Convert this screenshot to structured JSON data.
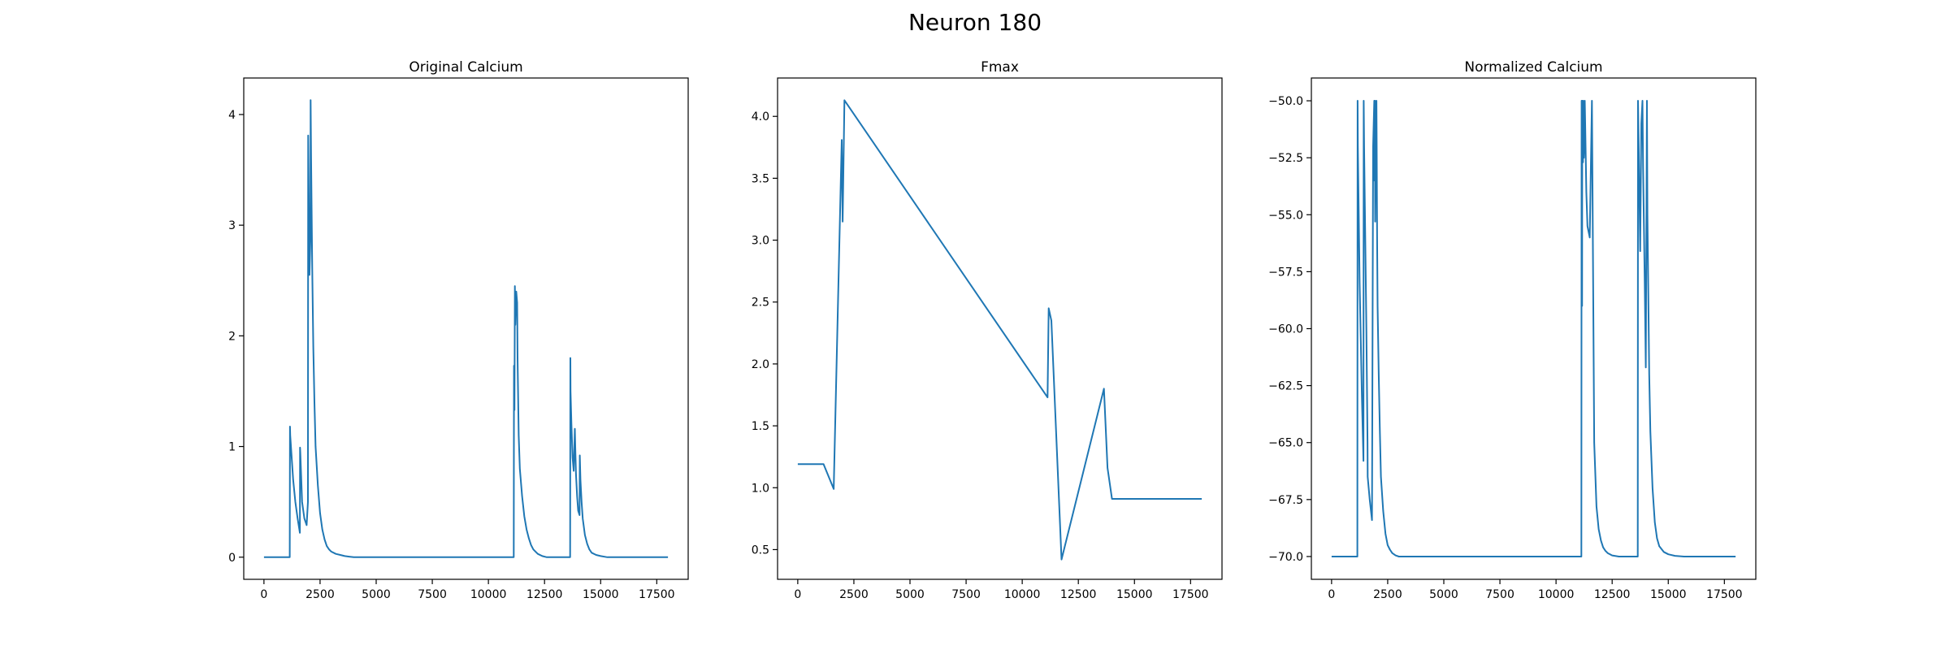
{
  "figure": {
    "title": "Neuron 180"
  },
  "chart_data": [
    {
      "type": "line",
      "title": "Original Calcium",
      "xlabel": "",
      "ylabel": "",
      "xlim": [
        -900,
        18900
      ],
      "ylim": [
        -0.2,
        4.33
      ],
      "xticks": [
        0,
        2500,
        5000,
        7500,
        10000,
        12500,
        15000,
        17500
      ],
      "yticks": [
        0,
        1,
        2,
        3,
        4
      ],
      "grid": false,
      "color": "#1f77b4",
      "series": [
        {
          "x": [
            0,
            1150,
            1160,
            1170,
            1300,
            1400,
            1500,
            1600,
            1610,
            1620,
            1700,
            1800,
            1900,
            1960,
            1970,
            2030,
            2070,
            2080,
            2100,
            2150,
            2200,
            2250,
            2300,
            2400,
            2500,
            2600,
            2700,
            2800,
            2900,
            3000,
            3200,
            3400,
            3600,
            3800,
            4000,
            4500,
            11130,
            11140,
            11160,
            11180,
            11200,
            11240,
            11280,
            11300,
            11320,
            11350,
            11400,
            11500,
            11600,
            11700,
            11800,
            11900,
            12000,
            12100,
            12200,
            12400,
            12600,
            13640,
            13650,
            13660,
            13700,
            13750,
            13800,
            13850,
            13870,
            13900,
            13950,
            14000,
            14060,
            14070,
            14100,
            14150,
            14200,
            14300,
            14400,
            14500,
            14600,
            14800,
            15000,
            15300,
            18000
          ],
          "y": [
            0,
            0,
            1.18,
            1.1,
            0.7,
            0.5,
            0.35,
            0.22,
            0.99,
            0.95,
            0.5,
            0.35,
            0.29,
            0.5,
            3.81,
            2.55,
            2.9,
            4.13,
            3.6,
            2.6,
            1.9,
            1.4,
            1.0,
            0.65,
            0.4,
            0.25,
            0.16,
            0.1,
            0.07,
            0.05,
            0.03,
            0.02,
            0.01,
            0.005,
            0,
            0,
            0,
            1.73,
            1.33,
            2.45,
            2.1,
            2.4,
            2.3,
            1.8,
            1.5,
            1.1,
            0.8,
            0.55,
            0.37,
            0.25,
            0.17,
            0.11,
            0.07,
            0.05,
            0.03,
            0.01,
            0,
            0,
            1.8,
            1.5,
            1.2,
            0.9,
            0.78,
            1.16,
            1.0,
            0.75,
            0.55,
            0.42,
            0.38,
            0.92,
            0.7,
            0.5,
            0.35,
            0.2,
            0.12,
            0.07,
            0.04,
            0.02,
            0.01,
            0,
            0
          ]
        }
      ]
    },
    {
      "type": "line",
      "title": "Fmax",
      "xlabel": "",
      "ylabel": "",
      "xlim": [
        -900,
        18900
      ],
      "ylim": [
        0.26,
        4.31
      ],
      "xticks": [
        0,
        2500,
        5000,
        7500,
        10000,
        12500,
        15000,
        17500
      ],
      "yticks": [
        0.5,
        1.0,
        1.5,
        2.0,
        2.5,
        3.0,
        3.5,
        4.0
      ],
      "grid": false,
      "color": "#1f77b4",
      "series": [
        {
          "x": [
            0,
            1150,
            1600,
            1960,
            2000,
            2030,
            2080,
            11130,
            11180,
            11300,
            11750,
            13640,
            13800,
            14000,
            18000
          ],
          "y": [
            1.19,
            1.19,
            0.99,
            3.81,
            3.15,
            3.5,
            4.13,
            1.73,
            2.45,
            2.35,
            0.42,
            1.8,
            1.16,
            0.91,
            0.91
          ]
        }
      ]
    },
    {
      "type": "line",
      "title": "Normalized Calcium",
      "xlabel": "",
      "ylabel": "",
      "xlim": [
        -900,
        18900
      ],
      "ylim": [
        -71.0,
        -49.0
      ],
      "xticks": [
        0,
        2500,
        5000,
        7500,
        10000,
        12500,
        15000,
        17500
      ],
      "yticks": [
        -50.0,
        -52.5,
        -55.0,
        -57.5,
        -60.0,
        -62.5,
        -65.0,
        -67.5,
        -70.0
      ],
      "yticklabels": [
        "−50.0",
        "−52.5",
        "−55.0",
        "−57.5",
        "−60.0",
        "−62.5",
        "−65.0",
        "−67.5",
        "−70.0"
      ],
      "grid": false,
      "color": "#1f77b4",
      "series": [
        {
          "x": [
            0,
            1150,
            1160,
            1170,
            1250,
            1350,
            1420,
            1430,
            1450,
            1550,
            1600,
            1610,
            1700,
            1800,
            1850,
            1900,
            1910,
            1930,
            1940,
            1960,
            2000,
            2010,
            2030,
            2050,
            2100,
            2150,
            2200,
            2300,
            2400,
            2500,
            2600,
            2700,
            2850,
            3000,
            3200,
            3500,
            4000,
            4500,
            11130,
            11140,
            11160,
            11170,
            11200,
            11210,
            11240,
            11260,
            11280,
            11300,
            11350,
            11400,
            11500,
            11600,
            11700,
            11800,
            11900,
            12000,
            12100,
            12200,
            12300,
            12500,
            12800,
            13640,
            13650,
            13700,
            13750,
            13800,
            13850,
            13880,
            13950,
            14000,
            14050,
            14070,
            14150,
            14200,
            14300,
            14400,
            14500,
            14600,
            14800,
            15000,
            15300,
            15700,
            18000
          ],
          "y": [
            -70,
            -70,
            -50,
            -52,
            -58,
            -63,
            -65.8,
            -50,
            -52,
            -60,
            -65,
            -66.5,
            -67.5,
            -68.4,
            -52,
            -50,
            -53.5,
            -50,
            -55.3,
            -53,
            -50,
            -52,
            -56,
            -59,
            -62,
            -64.5,
            -66.5,
            -68,
            -69,
            -69.5,
            -69.7,
            -69.85,
            -69.95,
            -70,
            -70,
            -70,
            -70,
            -70,
            -70,
            -50,
            -59,
            -50,
            -52.7,
            -50,
            -52.5,
            -52,
            -50,
            -51,
            -54,
            -55.5,
            -56,
            -50,
            -65,
            -67.8,
            -68.8,
            -69.3,
            -69.6,
            -69.75,
            -69.85,
            -69.95,
            -70,
            -70,
            -50,
            -53,
            -56.6,
            -51,
            -50,
            -53,
            -58,
            -61.7,
            -50,
            -55,
            -62,
            -64.5,
            -67,
            -68.5,
            -69.2,
            -69.55,
            -69.8,
            -69.9,
            -69.97,
            -70,
            -70
          ]
        }
      ]
    }
  ]
}
